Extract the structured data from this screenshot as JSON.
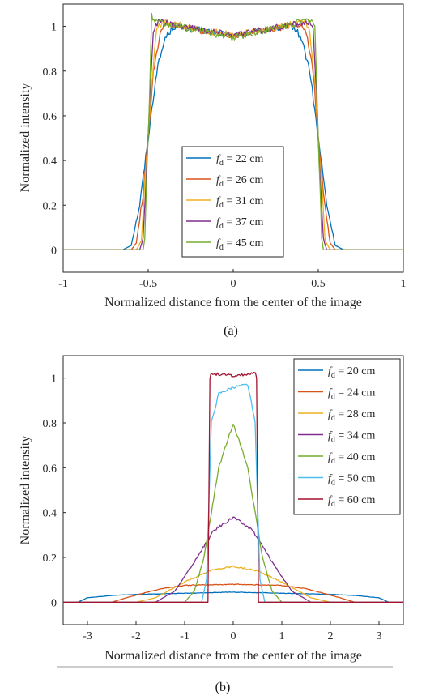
{
  "chart_data": [
    {
      "id": "a",
      "type": "line",
      "caption": "(a)",
      "xlabel": "Normalized distance from the center of the image",
      "ylabel": "Normalized intensity",
      "xlim": [
        -1,
        1
      ],
      "ylim": [
        -0.1,
        1.1
      ],
      "xticks": [
        -1,
        -0.5,
        0,
        0.5,
        1
      ],
      "xtick_labels": [
        "-1",
        "-0.5",
        "0",
        "0.5",
        "1"
      ],
      "yticks": [
        0,
        0.2,
        0.4,
        0.6,
        0.8,
        1
      ],
      "ytick_labels": [
        "0",
        "0.2",
        "0.4",
        "0.6",
        "0.8",
        "1"
      ],
      "legend_position": "center-bottom",
      "legend_unit": " = ",
      "series": [
        {
          "name": "22 cm",
          "color": "#0072BD",
          "x": [
            -1,
            -0.65,
            -0.6,
            -0.55,
            -0.5,
            -0.45,
            -0.4,
            -0.35,
            0,
            0.35,
            0.4,
            0.45,
            0.5,
            0.55,
            0.6,
            0.65,
            1
          ],
          "y": [
            0,
            0,
            0.02,
            0.2,
            0.5,
            0.8,
            0.95,
            1.0,
            0.96,
            1.0,
            0.95,
            0.8,
            0.5,
            0.2,
            0.02,
            0,
            0
          ]
        },
        {
          "name": "26 cm",
          "color": "#D95319",
          "x": [
            -1,
            -0.6,
            -0.57,
            -0.53,
            -0.5,
            -0.47,
            -0.43,
            -0.4,
            0,
            0.4,
            0.43,
            0.47,
            0.5,
            0.53,
            0.57,
            0.6,
            1
          ],
          "y": [
            0,
            0,
            0.03,
            0.25,
            0.5,
            0.8,
            0.97,
            1.01,
            0.96,
            1.01,
            0.97,
            0.8,
            0.5,
            0.25,
            0.03,
            0,
            0
          ]
        },
        {
          "name": "31 cm",
          "color": "#EDB120",
          "x": [
            -1,
            -0.57,
            -0.54,
            -0.52,
            -0.5,
            -0.48,
            -0.45,
            -0.42,
            0,
            0.42,
            0.45,
            0.48,
            0.5,
            0.52,
            0.54,
            0.57,
            1
          ],
          "y": [
            0,
            0,
            0.04,
            0.3,
            0.5,
            0.75,
            0.98,
            1.02,
            0.96,
            1.02,
            0.98,
            0.75,
            0.5,
            0.3,
            0.04,
            0,
            0
          ]
        },
        {
          "name": "37 cm",
          "color": "#7E2F8E",
          "x": [
            -1,
            -0.55,
            -0.53,
            -0.51,
            -0.5,
            -0.49,
            -0.47,
            -0.44,
            0,
            0.44,
            0.47,
            0.49,
            0.5,
            0.51,
            0.53,
            0.55,
            1
          ],
          "y": [
            0,
            0,
            0.05,
            0.35,
            0.5,
            0.7,
            0.98,
            1.02,
            0.96,
            1.02,
            0.98,
            0.7,
            0.5,
            0.35,
            0.05,
            0,
            0
          ]
        },
        {
          "name": "45 cm",
          "color": "#77AC30",
          "x": [
            -1,
            -0.53,
            -0.52,
            -0.51,
            -0.5,
            -0.49,
            -0.48,
            -0.46,
            0,
            0.46,
            0.48,
            0.49,
            0.5,
            0.51,
            0.52,
            0.53,
            1
          ],
          "y": [
            0,
            0,
            0.05,
            0.3,
            0.5,
            0.75,
            1.05,
            1.02,
            0.95,
            1.03,
            1.0,
            0.75,
            0.5,
            0.3,
            0.05,
            0,
            0
          ]
        }
      ]
    },
    {
      "id": "b",
      "type": "line",
      "caption": "(b)",
      "xlabel": "Normalized distance from the center of the image",
      "ylabel": "Normalized intensity",
      "xlim": [
        -3.5,
        3.5
      ],
      "ylim": [
        -0.1,
        1.1
      ],
      "xticks": [
        -3,
        -2,
        -1,
        0,
        1,
        2,
        3
      ],
      "xtick_labels": [
        "-3",
        "-2",
        "-1",
        "0",
        "1",
        "2",
        "3"
      ],
      "yticks": [
        0,
        0.2,
        0.4,
        0.6,
        0.8,
        1
      ],
      "ytick_labels": [
        "0",
        "0.2",
        "0.4",
        "0.6",
        "0.8",
        "1"
      ],
      "legend_position": "top-right",
      "legend_unit": " = ",
      "series": [
        {
          "name": "20 cm",
          "color": "#0072BD",
          "x": [
            -3.5,
            -3.2,
            -3.0,
            -2.5,
            -2.0,
            -1.0,
            0,
            1.0,
            2.0,
            2.5,
            3.0,
            3.2,
            3.5
          ],
          "y": [
            0,
            0,
            0.02,
            0.03,
            0.035,
            0.04,
            0.045,
            0.04,
            0.035,
            0.03,
            0.02,
            0,
            0
          ]
        },
        {
          "name": "24 cm",
          "color": "#D95319",
          "x": [
            -3.5,
            -2.5,
            -2.2,
            -1.5,
            -1.0,
            0,
            1.0,
            1.5,
            2.2,
            2.5,
            3.5
          ],
          "y": [
            0,
            0,
            0.02,
            0.06,
            0.075,
            0.08,
            0.075,
            0.06,
            0.02,
            0,
            0
          ]
        },
        {
          "name": "28 cm",
          "color": "#EDB120",
          "x": [
            -3.5,
            -2.0,
            -1.6,
            -1.0,
            -0.5,
            0,
            0.5,
            1.0,
            1.6,
            2.0,
            3.5
          ],
          "y": [
            0,
            0,
            0.02,
            0.09,
            0.14,
            0.16,
            0.14,
            0.09,
            0.02,
            0,
            0
          ]
        },
        {
          "name": "34 cm",
          "color": "#7E2F8E",
          "x": [
            -3.5,
            -1.6,
            -1.2,
            -0.8,
            -0.4,
            0,
            0.4,
            0.8,
            1.2,
            1.6,
            3.5
          ],
          "y": [
            0,
            0,
            0.05,
            0.18,
            0.32,
            0.38,
            0.32,
            0.18,
            0.05,
            0,
            0
          ]
        },
        {
          "name": "40 cm",
          "color": "#77AC30",
          "x": [
            -3.5,
            -1.0,
            -0.8,
            -0.6,
            -0.3,
            0,
            0.3,
            0.6,
            0.8,
            1.0,
            3.5
          ],
          "y": [
            0,
            0,
            0.05,
            0.2,
            0.6,
            0.8,
            0.6,
            0.2,
            0.05,
            0,
            0
          ]
        },
        {
          "name": "50 cm",
          "color": "#4DBEEE",
          "x": [
            -3.5,
            -0.65,
            -0.55,
            -0.45,
            -0.3,
            0,
            0.3,
            0.45,
            0.55,
            0.65,
            3.5
          ],
          "y": [
            0,
            0,
            0.1,
            0.8,
            0.93,
            0.96,
            0.97,
            0.8,
            0.1,
            0,
            0
          ]
        },
        {
          "name": "60 cm",
          "color": "#A2142F",
          "x": [
            -3.5,
            -0.52,
            -0.5,
            -0.48,
            -0.45,
            0,
            0.45,
            0.48,
            0.5,
            0.52,
            3.5
          ],
          "y": [
            0,
            0,
            0.5,
            1.0,
            1.02,
            1.01,
            1.02,
            1.0,
            0.5,
            0,
            0
          ]
        }
      ]
    }
  ]
}
